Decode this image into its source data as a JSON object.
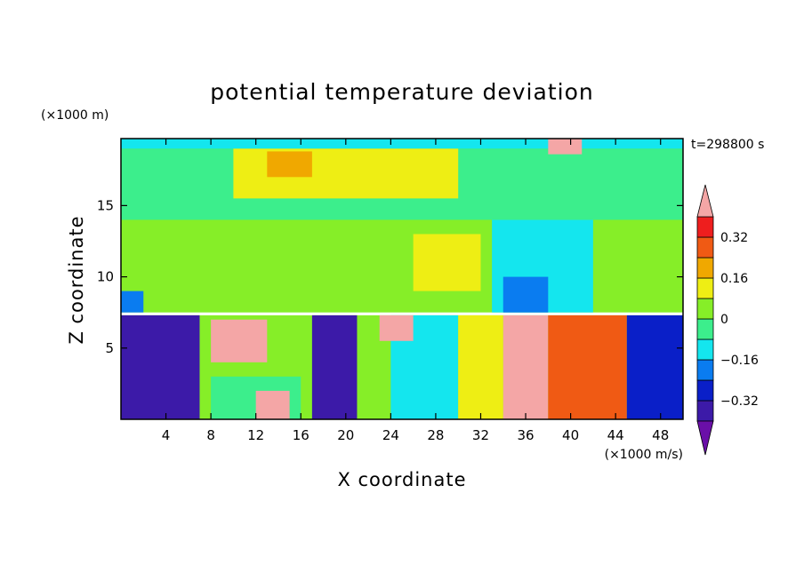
{
  "chart_data": {
    "type": "heatmap",
    "title": "potential temperature deviation",
    "xlabel": "X coordinate",
    "ylabel": "Z coordinate",
    "x_unit": "(×1000 m/s)",
    "y_unit": "(×1000 m)",
    "time_label": "t=298800 s",
    "xlim": [
      0,
      50
    ],
    "ylim": [
      0,
      19.7
    ],
    "x_ticks": [
      4,
      8,
      12,
      16,
      20,
      24,
      28,
      32,
      36,
      40,
      44,
      48
    ],
    "y_ticks": [
      5,
      10,
      15
    ],
    "colorbar": {
      "tick_labels": [
        {
          "value": 0.32,
          "text": "0.32"
        },
        {
          "value": 0.16,
          "text": "0.16"
        },
        {
          "value": 0,
          "text": "0"
        },
        {
          "value": -0.16,
          "text": "−0.16"
        },
        {
          "value": -0.32,
          "text": "−0.32"
        }
      ],
      "levels": [
        -0.4,
        -0.32,
        -0.24,
        -0.16,
        -0.08,
        0,
        0.08,
        0.16,
        0.24,
        0.32,
        0.4
      ],
      "colors": [
        "#6a0fa8",
        "#3c1aa8",
        "#0a1fc8",
        "#0a7cf0",
        "#14e6ee",
        "#3cee8c",
        "#86ee28",
        "#eeee14",
        "#f0a800",
        "#f05a14",
        "#ee1e1e",
        "#f4a6a6"
      ],
      "extend": "both"
    },
    "regions": [
      {
        "z": [
          7.5,
          19.7
        ],
        "x": [
          0,
          50
        ],
        "level": 0.04
      },
      {
        "z": [
          14,
          19.2
        ],
        "x": [
          0,
          50
        ],
        "level": -0.02
      },
      {
        "z": [
          15.5,
          19
        ],
        "x": [
          10,
          30
        ],
        "level": 0.12
      },
      {
        "z": [
          17,
          18.8
        ],
        "x": [
          13,
          17
        ],
        "level": 0.2
      },
      {
        "z": [
          9,
          13
        ],
        "x": [
          26,
          32
        ],
        "level": 0.12
      },
      {
        "z": [
          7.5,
          14
        ],
        "x": [
          33,
          42
        ],
        "level": -0.1
      },
      {
        "z": [
          7.5,
          10
        ],
        "x": [
          34,
          38
        ],
        "level": -0.2
      },
      {
        "z": [
          7.5,
          9
        ],
        "x": [
          0,
          2
        ],
        "level": -0.2
      },
      {
        "z": [
          19,
          19.7
        ],
        "x": [
          0,
          50
        ],
        "level": -0.12
      },
      {
        "z": [
          18.6,
          19.7
        ],
        "x": [
          38,
          41
        ],
        "level": 0.45
      },
      {
        "z": [
          0,
          7.3
        ],
        "x": [
          0,
          50
        ],
        "level": 0.02
      },
      {
        "z": [
          0,
          7.3
        ],
        "x": [
          0,
          7
        ],
        "level": -0.35
      },
      {
        "z": [
          0,
          7.3
        ],
        "x": [
          17,
          21
        ],
        "level": -0.35
      },
      {
        "z": [
          0,
          7.3
        ],
        "x": [
          24,
          30
        ],
        "level": -0.1
      },
      {
        "z": [
          0,
          7.3
        ],
        "x": [
          30,
          34
        ],
        "level": 0.1
      },
      {
        "z": [
          0,
          7.3
        ],
        "x": [
          34,
          38
        ],
        "level": 0.4
      },
      {
        "z": [
          0,
          7.3
        ],
        "x": [
          38,
          45
        ],
        "level": 0.24
      },
      {
        "z": [
          0,
          7.3
        ],
        "x": [
          45,
          50
        ],
        "level": -0.3
      },
      {
        "z": [
          0,
          3
        ],
        "x": [
          8,
          16
        ],
        "level": -0.08
      },
      {
        "z": [
          4,
          7
        ],
        "x": [
          8,
          13
        ],
        "level": 0.42
      },
      {
        "z": [
          5.5,
          7.3
        ],
        "x": [
          23,
          26
        ],
        "level": 0.42
      },
      {
        "z": [
          0,
          2
        ],
        "x": [
          12,
          15
        ],
        "level": 0.42
      }
    ],
    "grid": false
  }
}
